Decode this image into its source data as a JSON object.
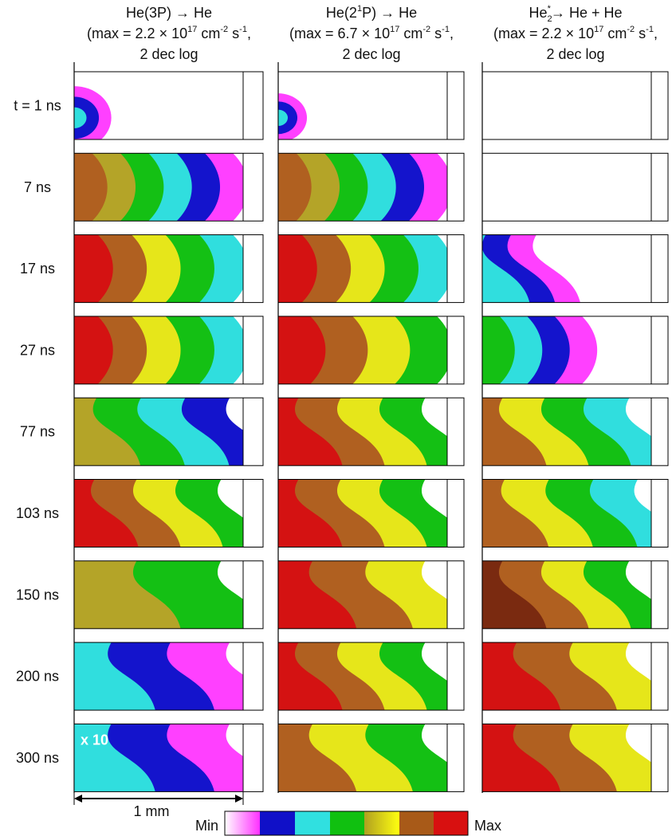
{
  "columns": [
    {
      "title": [
        "He(3P) → He"
      ],
      "max": [
        "(max = 2.2 × 10",
        "17",
        " cm",
        "-2",
        " s",
        "-1",
        ","
      ],
      "scale": "2 dec log"
    },
    {
      "title": [
        "He(2",
        "1",
        "P) → He"
      ],
      "max": [
        "(max = 6.7 × 10",
        "17",
        " cm",
        "-2",
        " s",
        "-1",
        ","
      ],
      "scale": "2 dec log"
    },
    {
      "title": [
        "He",
        "2",
        "*",
        "→ He + He"
      ],
      "max": [
        "(max = 2.2 × 10",
        "17",
        " cm",
        "-2",
        " s",
        "-1",
        ","
      ],
      "scale": "2 dec log"
    }
  ],
  "rows": [
    "t = 1 ns",
    "7 ns",
    "17 ns",
    "27 ns",
    "77 ns",
    "103 ns",
    "150 ns",
    "200 ns",
    "300 ns"
  ],
  "annotation": "x 10",
  "scale_bar": "1 mm",
  "colorbar": {
    "min": "Min",
    "max": "Max"
  }
}
